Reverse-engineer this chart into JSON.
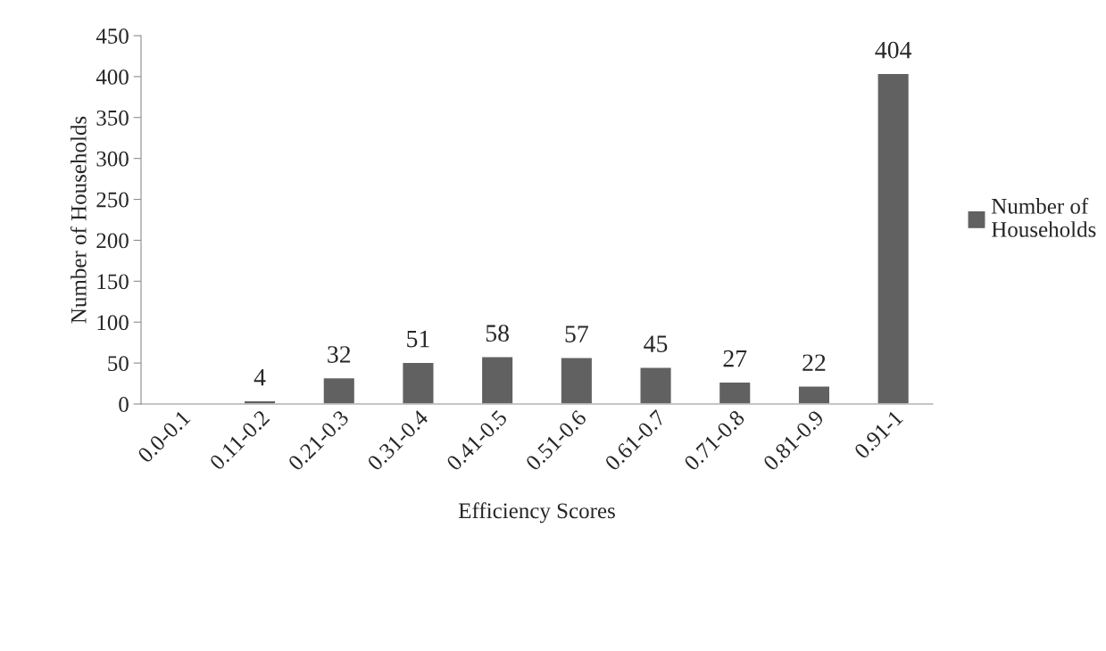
{
  "chart_data": {
    "type": "bar",
    "xlabel": "Efficiency Scores",
    "ylabel": "Number of Households",
    "categories": [
      "0.0-0.1",
      "0.11-0.2",
      "0.21-0.3",
      "0.31-0.4",
      "0.41-0.5",
      "0.51-0.6",
      "0.61-0.7",
      "0.71-0.8",
      "0.81-0.9",
      "0.91-1"
    ],
    "series": [
      {
        "name": "Number of Households",
        "color": "#616161",
        "values": [
          null,
          4,
          32,
          51,
          58,
          57,
          45,
          27,
          22,
          404
        ],
        "value_labels": [
          null,
          "4",
          "32",
          "51",
          "58",
          "57",
          "45",
          "27",
          "22",
          "404"
        ]
      }
    ],
    "ylim": [
      0,
      450
    ],
    "yticks": [
      0,
      50,
      100,
      150,
      200,
      250,
      300,
      350,
      400,
      450
    ],
    "grid": false,
    "legend": "right"
  }
}
